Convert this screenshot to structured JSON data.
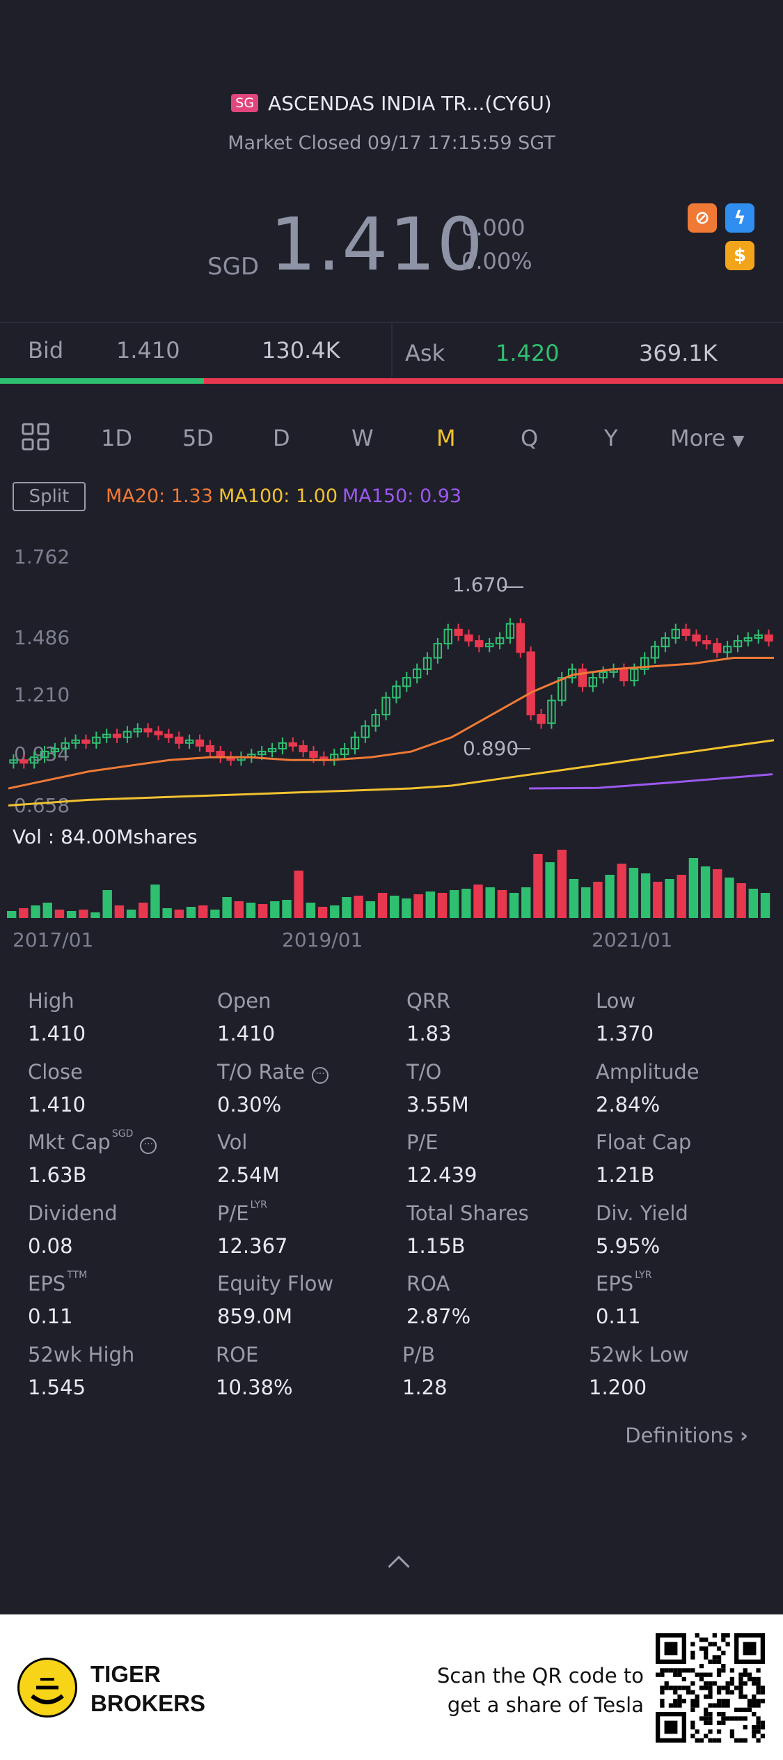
{
  "header": {
    "market_badge": "SG",
    "title": "ASCENDAS INDIA TR...(CY6U)",
    "status": "Market Closed 09/17 17:15:59 SGT",
    "currency": "SGD",
    "price": "1.410",
    "change": "0.000",
    "change_pct": "0.00%"
  },
  "quote": {
    "bid_label": "Bid",
    "bid_price": "1.410",
    "bid_size": "130.4K",
    "ask_label": "Ask",
    "ask_price": "1.420",
    "ask_size": "369.1K",
    "bid_ratio": 0.26
  },
  "tabs": [
    "1D",
    "5D",
    "D",
    "W",
    "M",
    "Q",
    "Y",
    "More"
  ],
  "active_tab": "M",
  "indicators": {
    "split_label": "Split",
    "ma20": "MA20: 1.33",
    "ma100": "MA100: 1.00",
    "ma150": "MA150: 0.93"
  },
  "chart_data": {
    "type": "candlestick",
    "y_ticks": [
      "1.762",
      "1.486",
      "1.210",
      "0.934",
      "0.658"
    ],
    "max_annotation": "1.670",
    "min_annotation": "0.890",
    "volume_label": "Vol  : 84.00Mshares",
    "x_ticks": [
      "2017/01",
      "2019/01",
      "2021/01"
    ],
    "colors": {
      "up": "#2fbf71",
      "down": "#e8384f",
      "ma20": "#f07a35",
      "ma100": "#f2c230",
      "ma150": "#9b59f0"
    }
  },
  "stats": [
    {
      "label": "High",
      "value": "1.410"
    },
    {
      "label": "Open",
      "value": "1.410"
    },
    {
      "label": "QRR",
      "value": "1.83"
    },
    {
      "label": "Low",
      "value": "1.370"
    },
    {
      "label": "Close",
      "value": "1.410"
    },
    {
      "label": "T/O Rate",
      "value": "0.30%"
    },
    {
      "label": "T/O",
      "value": "3.55M"
    },
    {
      "label": "Amplitude",
      "value": "2.84%"
    },
    {
      "label": "Mkt Cap",
      "value": "1.63B",
      "sup": "SGD"
    },
    {
      "label": "Vol",
      "value": "2.54M"
    },
    {
      "label": "P/E",
      "value": "12.439"
    },
    {
      "label": "Float Cap",
      "value": "1.21B"
    },
    {
      "label": "Dividend",
      "value": "0.08"
    },
    {
      "label": "P/E",
      "value": "12.367",
      "sup": "LYR"
    },
    {
      "label": "Total Shares",
      "value": "1.15B"
    },
    {
      "label": "Div. Yield",
      "value": "5.95%"
    },
    {
      "label": "EPS",
      "value": "0.11",
      "sup": "TTM"
    },
    {
      "label": "Equity Flow",
      "value": "859.0M"
    },
    {
      "label": "ROA",
      "value": "2.87%"
    },
    {
      "label": "EPS",
      "value": "0.11",
      "sup": "LYR"
    },
    {
      "label": "52wk High",
      "value": "1.545"
    },
    {
      "label": "ROE",
      "value": "10.38%"
    },
    {
      "label": "P/B",
      "value": "1.28"
    },
    {
      "label": "52wk Low",
      "value": "1.200"
    }
  ],
  "definitions_label": "Definitions",
  "footer": {
    "brand_line1": "TIGER",
    "brand_line2": "BROKERS",
    "scan_line1": "Scan the QR code to",
    "scan_line2": "get a share of Tesla"
  }
}
